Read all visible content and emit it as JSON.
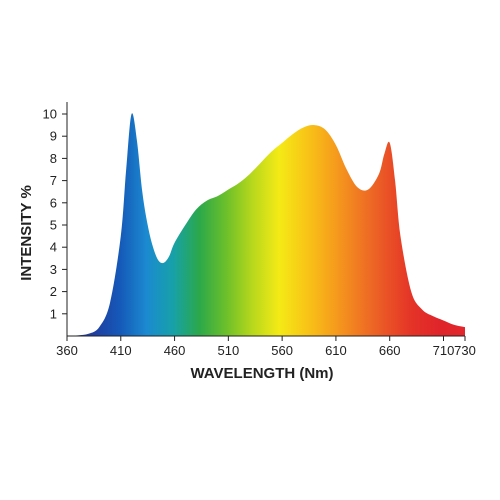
{
  "chart_data": {
    "type": "area",
    "title": "",
    "xlabel": "WAVELENGTH (Nm)",
    "ylabel": "INTENSITY %",
    "xlim": [
      360,
      730
    ],
    "ylim": [
      0,
      10
    ],
    "xticks": [
      360,
      410,
      460,
      510,
      560,
      610,
      660,
      710,
      730
    ],
    "yticks": [
      1,
      2,
      3,
      4,
      5,
      6,
      7,
      8,
      9,
      10
    ],
    "grid": false,
    "fill": "visible spectrum gradient",
    "x": [
      360,
      370,
      380,
      390,
      400,
      410,
      415,
      420,
      425,
      430,
      435,
      440,
      445,
      450,
      455,
      460,
      470,
      480,
      490,
      500,
      510,
      520,
      530,
      540,
      550,
      560,
      570,
      580,
      590,
      600,
      610,
      620,
      630,
      640,
      650,
      655,
      660,
      665,
      670,
      680,
      690,
      700,
      710,
      720,
      730
    ],
    "y": [
      0.02,
      0.03,
      0.1,
      0.4,
      1.5,
      4.5,
      7.5,
      10.0,
      8.8,
      6.5,
      5.0,
      4.0,
      3.4,
      3.3,
      3.6,
      4.2,
      5.0,
      5.7,
      6.1,
      6.3,
      6.6,
      6.9,
      7.3,
      7.8,
      8.3,
      8.7,
      9.1,
      9.4,
      9.5,
      9.3,
      8.6,
      7.5,
      6.7,
      6.6,
      7.3,
      8.2,
      8.7,
      7.0,
      4.5,
      2.0,
      1.2,
      0.9,
      0.7,
      0.5,
      0.4
    ]
  },
  "colors": {
    "axis": "#222222",
    "spectrum": [
      "#2a3a8f",
      "#1f3ea0",
      "#1559b8",
      "#1b8ad0",
      "#17a1a8",
      "#2ca84a",
      "#6cc02a",
      "#b9d81c",
      "#f4ea16",
      "#f8c617",
      "#f6a01b",
      "#f07a22",
      "#ea5426",
      "#e43327",
      "#e0252a",
      "#e2262c"
    ]
  }
}
